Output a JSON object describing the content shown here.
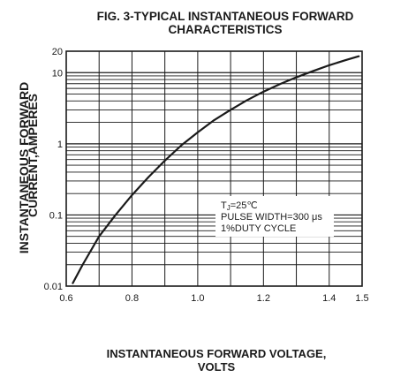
{
  "chart_data": {
    "type": "line",
    "title": "FIG. 3-TYPICAL INSTANTANEOUS FORWARD",
    "subtitle": "CHARACTERISTICS",
    "xlabel": "INSTANTANEOUS FORWARD VOLTAGE,",
    "xlabel_line2": "VOLTS",
    "ylabel": "INSTANTANEOUS FORWARD",
    "ylabel_line2": "CURRENT,AMPERES",
    "x_scale": "linear",
    "y_scale": "log",
    "xlim": [
      0.6,
      1.5
    ],
    "ylim": [
      0.01,
      20
    ],
    "x_ticks": [
      "0.6",
      "0.8",
      "1.0",
      "1.2",
      "1.4",
      "1.5"
    ],
    "x_tick_values": [
      0.6,
      0.8,
      1.0,
      1.2,
      1.4,
      1.5
    ],
    "y_ticks": [
      "0.01",
      "0.1",
      "1",
      "10",
      "20"
    ],
    "y_tick_values": [
      0.01,
      0.1,
      1,
      10,
      20
    ],
    "grid": true,
    "series": [
      {
        "x": [
          0.62,
          0.65,
          0.7,
          0.75,
          0.8,
          0.85,
          0.9,
          0.95,
          1.0,
          1.05,
          1.1,
          1.15,
          1.2,
          1.25,
          1.3,
          1.35,
          1.4,
          1.45,
          1.49
        ],
        "y": [
          0.011,
          0.02,
          0.05,
          0.1,
          0.19,
          0.34,
          0.58,
          0.95,
          1.45,
          2.15,
          3.0,
          4.1,
          5.4,
          6.9,
          8.6,
          10.5,
          12.7,
          15.0,
          17.0
        ]
      }
    ],
    "annotation": {
      "line1_main": "T",
      "line1_sub": "J",
      "line1_rest": "=25℃",
      "line2": "PULSE WIDTH=300 μs",
      "line3": "1%DUTY CYCLE"
    }
  },
  "colors": {
    "line": "#1a1a1a",
    "grid": "#1a1a1a",
    "background": "#ffffff"
  }
}
